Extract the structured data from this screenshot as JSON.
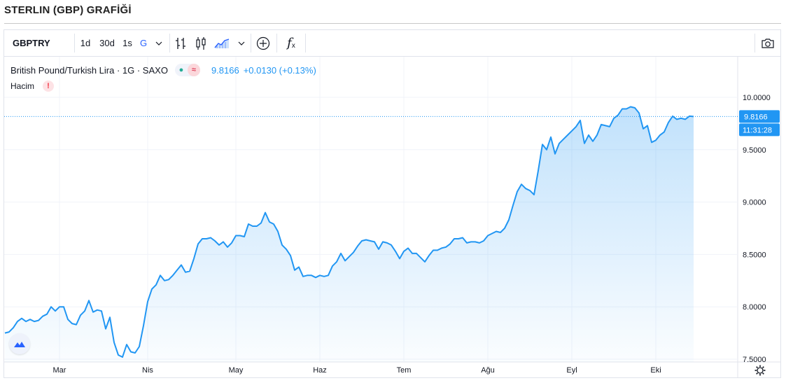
{
  "page": {
    "title": "STERLIN (GBP) GRAFİĞİ"
  },
  "toolbar": {
    "symbol": "GBPTRY",
    "timeframes": [
      "1d",
      "30d",
      "1s",
      "G"
    ],
    "active_timeframe": "G",
    "icons": [
      "chevron-down-icon",
      "bars-icon",
      "candles-icon",
      "area-chart-icon",
      "chevron-down-icon",
      "add-indicator-icon",
      "fx-icon",
      "camera-icon"
    ],
    "fx_label": "f"
  },
  "legend": {
    "instrument": "British Pound/Turkish Lira · 1G · SAXO",
    "approx_symbol": "≈",
    "last": "9.8166",
    "change": "+0.0130 (+0.13%)",
    "volume_label": "Hacim",
    "warning_symbol": "!"
  },
  "price_scale": {
    "last_price_label": "9.8166",
    "countdown_label": "11:31:28"
  },
  "colors": {
    "line": "#2196f3",
    "accent": "#2962ff",
    "grid": "#f0f3fa",
    "last_tag": "#2196f3"
  },
  "chart_data": {
    "type": "area",
    "series": [
      {
        "values": [
          7.75,
          7.76,
          7.8,
          7.86,
          7.89,
          7.86,
          7.88,
          7.86,
          7.87,
          7.91,
          7.93,
          8.0,
          7.96,
          8.0,
          8.0,
          7.88,
          7.84,
          7.83,
          7.92,
          7.96,
          8.06,
          7.95,
          7.97,
          7.96,
          7.79,
          7.9,
          7.66,
          7.54,
          7.52,
          7.64,
          7.57,
          7.56,
          7.62,
          7.82,
          8.05,
          8.17,
          8.21,
          8.3,
          8.25,
          8.26,
          8.3,
          8.35,
          8.4,
          8.33,
          8.34,
          8.46,
          8.6,
          8.65,
          8.65,
          8.66,
          8.63,
          8.59,
          8.62,
          8.57,
          8.61,
          8.68,
          8.68,
          8.67,
          8.79,
          8.77,
          8.77,
          8.8,
          8.9,
          8.81,
          8.79,
          8.72,
          8.59,
          8.55,
          8.49,
          8.35,
          8.38,
          8.29,
          8.3,
          8.3,
          8.28,
          8.3,
          8.29,
          8.3,
          8.39,
          8.43,
          8.51,
          8.44,
          8.48,
          8.52,
          8.58,
          8.63,
          8.64,
          8.63,
          8.62,
          8.55,
          8.62,
          8.61,
          8.59,
          8.53,
          8.46,
          8.53,
          8.56,
          8.51,
          8.51,
          8.47,
          8.43,
          8.49,
          8.54,
          8.54,
          8.56,
          8.57,
          8.6,
          8.65,
          8.65,
          8.66,
          8.61,
          8.62,
          8.62,
          8.61,
          8.63,
          8.68,
          8.7,
          8.72,
          8.71,
          8.75,
          8.83,
          8.97,
          9.1,
          9.17,
          9.13,
          9.11,
          9.07,
          9.3,
          9.55,
          9.5,
          9.62,
          9.46,
          9.56,
          9.6,
          9.64,
          9.68,
          9.72,
          9.78,
          9.56,
          9.64,
          9.58,
          9.64,
          9.74,
          9.73,
          9.72,
          9.8,
          9.83,
          9.89,
          9.89,
          9.91,
          9.9,
          9.85,
          9.7,
          9.73,
          9.57,
          9.59,
          9.64,
          9.67,
          9.76,
          9.82,
          9.79,
          9.8,
          9.79,
          9.82,
          9.8166
        ]
      }
    ],
    "x_labels": [
      "Mar",
      "Nis",
      "May",
      "Haz",
      "Tem",
      "Ağu",
      "Eyl",
      "Eki"
    ],
    "x_label_index": [
      13,
      34,
      55,
      75,
      95,
      115,
      135,
      155
    ],
    "y_ticks": [
      "7.5000",
      "8.0000",
      "8.5000",
      "9.0000",
      "9.5000",
      "10.0000"
    ],
    "ylim": [
      7.35,
      10.2
    ],
    "grid": true
  }
}
